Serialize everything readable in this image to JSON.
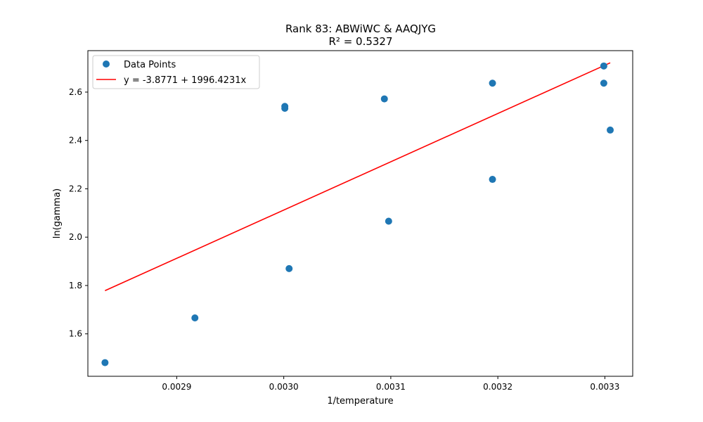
{
  "chart_data": {
    "type": "scatter",
    "title": "Rank 83: ABWiWC & AAQJYG",
    "subtitle": "R² = 0.5327",
    "xlabel": "1/temperature",
    "ylabel": "ln(gamma)",
    "xlim": [
      0.002817,
      0.003326
    ],
    "ylim": [
      1.4245,
      2.7715
    ],
    "x_ticks": [
      0.0029,
      0.003,
      0.0031,
      0.0032,
      0.0033
    ],
    "x_tick_labels": [
      "0.0029",
      "0.0030",
      "0.0031",
      "0.0032",
      "0.0033"
    ],
    "y_ticks": [
      1.6,
      1.8,
      2.0,
      2.2,
      2.4,
      2.6
    ],
    "y_tick_labels": [
      "1.6",
      "1.8",
      "2.0",
      "2.2",
      "2.4",
      "2.6"
    ],
    "grid": false,
    "legend_position": "top-left",
    "series": [
      {
        "name": "Data Points",
        "kind": "scatter",
        "color": "#1f77b4",
        "points": [
          {
            "x": 0.002833,
            "y": 1.481
          },
          {
            "x": 0.002917,
            "y": 1.666
          },
          {
            "x": 0.003001,
            "y": 2.541
          },
          {
            "x": 0.003001,
            "y": 2.533
          },
          {
            "x": 0.003005,
            "y": 1.87
          },
          {
            "x": 0.003094,
            "y": 2.572
          },
          {
            "x": 0.003098,
            "y": 2.066
          },
          {
            "x": 0.003195,
            "y": 2.637
          },
          {
            "x": 0.003195,
            "y": 2.239
          },
          {
            "x": 0.003299,
            "y": 2.708
          },
          {
            "x": 0.003299,
            "y": 2.637
          },
          {
            "x": 0.003305,
            "y": 2.443
          }
        ]
      },
      {
        "name": "y = -3.8771 + 1996.4231x",
        "kind": "line",
        "color": "#ff0000",
        "intercept": -3.8771,
        "slope": 1996.4231,
        "x_range": [
          0.002833,
          0.003305
        ]
      }
    ]
  }
}
